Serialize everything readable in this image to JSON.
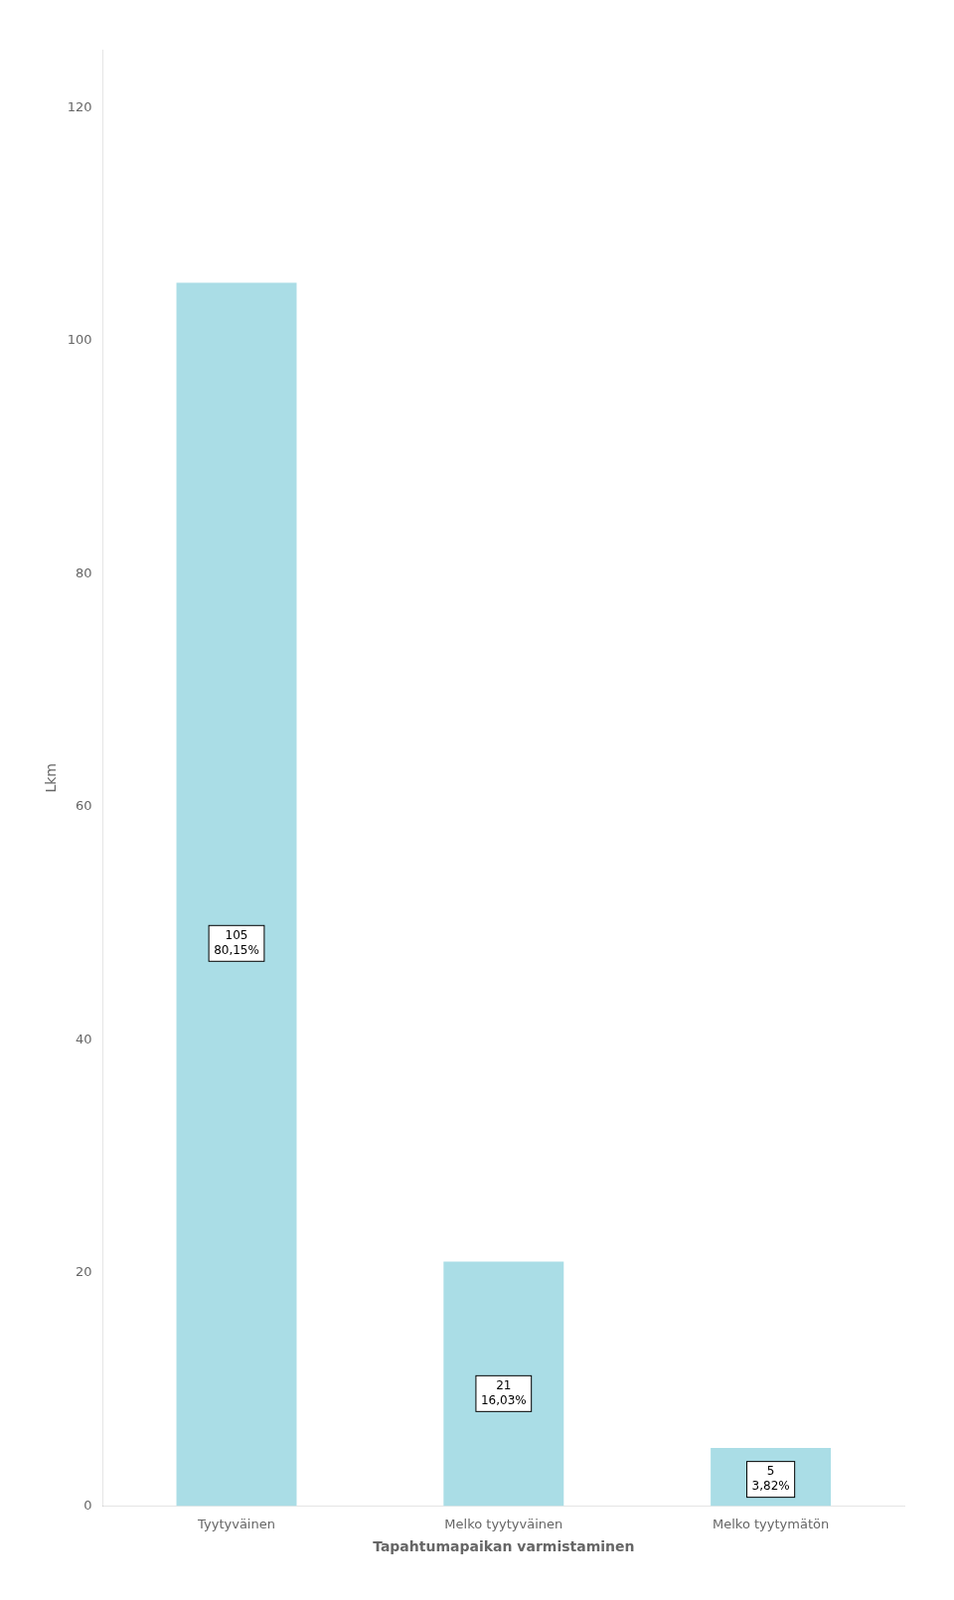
{
  "chart_data": {
    "type": "bar",
    "categories": [
      "Tyytyväinen",
      "Melko tyytyväinen",
      "Melko tyytymätön"
    ],
    "values": [
      105,
      21,
      5
    ],
    "value_labels": [
      "105\n80,15%",
      "21\n16,03%",
      "5\n3,82%"
    ],
    "data_labels": true,
    "color": "#aadde6",
    "xlabel": "Tapahtumapaikan varmistaminen",
    "ylabel": "Lkm",
    "ylim": [
      0,
      125
    ],
    "yticks": [
      0,
      20,
      40,
      60,
      80,
      100,
      120
    ],
    "grid": false
  }
}
